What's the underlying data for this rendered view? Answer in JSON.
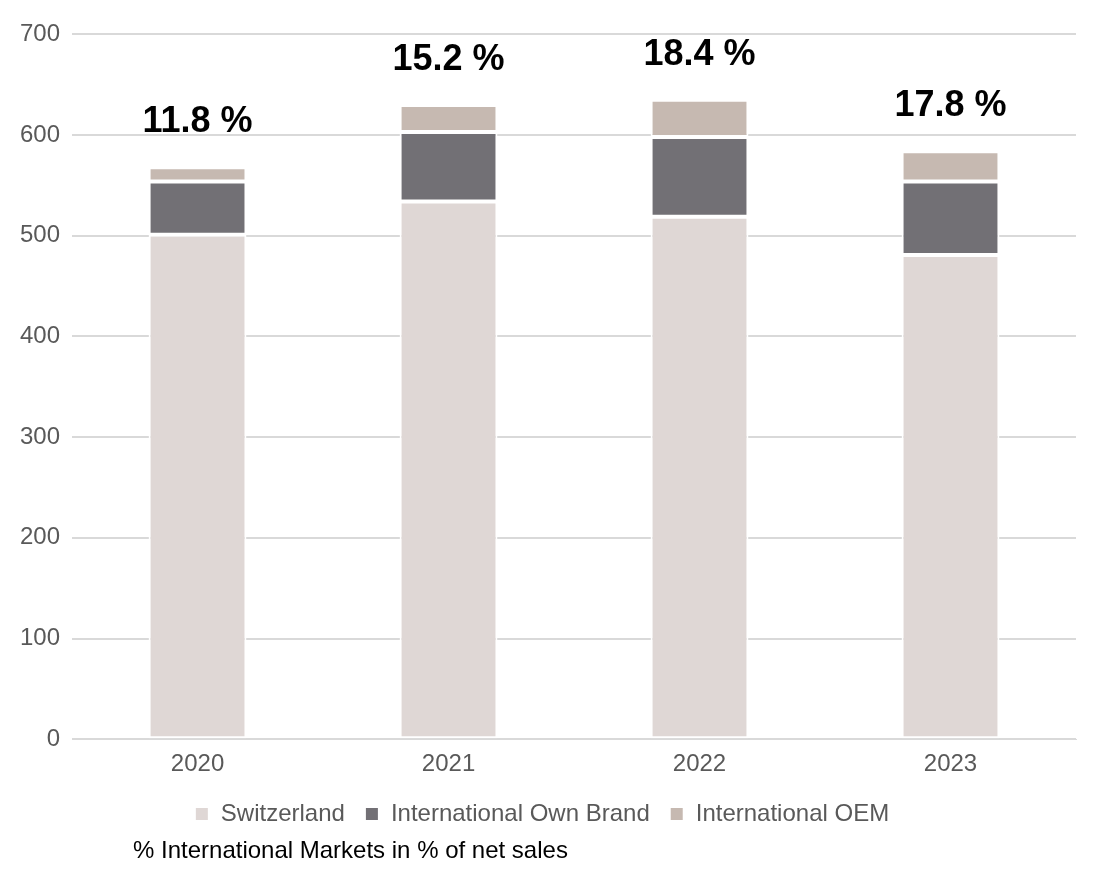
{
  "chart_data": {
    "type": "bar",
    "stacked": true,
    "categories": [
      "2020",
      "2021",
      "2022",
      "2023"
    ],
    "series": [
      {
        "name": "Switzerland",
        "color": "#dfd7d5",
        "values": [
          501,
          534,
          519,
          481
        ]
      },
      {
        "name": "International Own Brand",
        "color": "#727075",
        "values": [
          53,
          69,
          79,
          73
        ]
      },
      {
        "name": "International OEM",
        "color": "#c6b9b1",
        "values": [
          14,
          27,
          37,
          30
        ]
      }
    ],
    "ylim": [
      0,
      700
    ],
    "yticks": [
      0,
      100,
      200,
      300,
      400,
      500,
      600,
      700
    ],
    "grid": "y",
    "legend": "bottom",
    "annotations": [
      "11.8 %",
      "15.2 %",
      "18.4 %",
      "17.8 %",
      "% International Markets in % of net sales"
    ]
  }
}
